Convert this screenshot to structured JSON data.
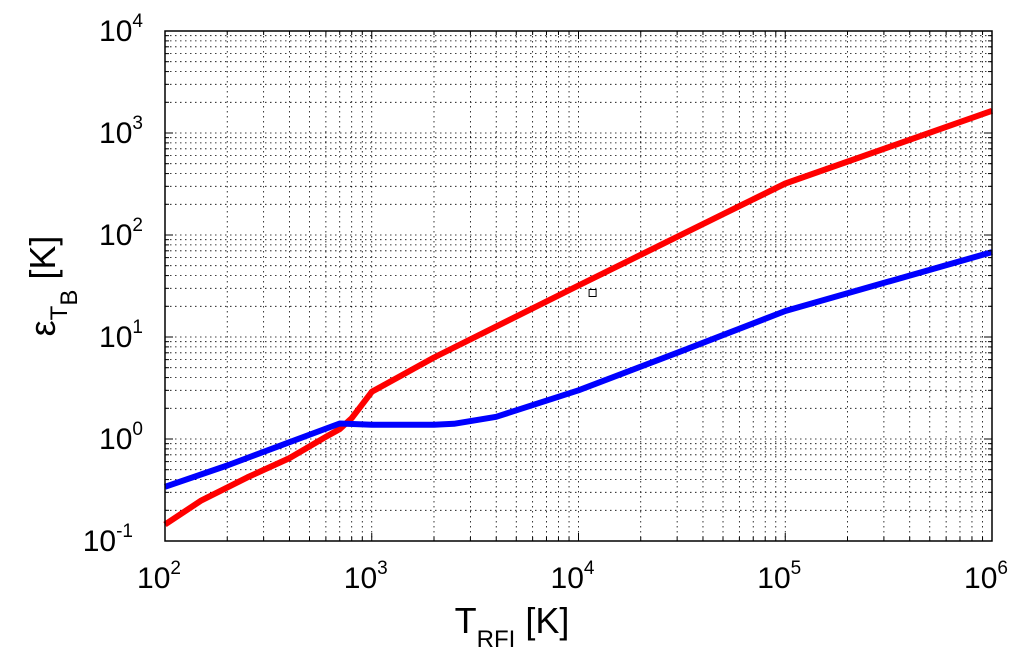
{
  "chart_data": {
    "type": "line",
    "title": "",
    "xlabel": {
      "main": "T",
      "sub": "RFI",
      "unit": " [K]"
    },
    "ylabel": {
      "main": "ε",
      "sub": "T",
      "subsub": "B",
      "unit": " [K]"
    },
    "x_scale": "log",
    "y_scale": "log",
    "xlim": [
      100,
      1000000
    ],
    "ylim": [
      0.1,
      10000
    ],
    "grid": true,
    "legend": "none",
    "x_ticks": [
      {
        "base": "10",
        "exp": "2",
        "value": 100
      },
      {
        "base": "10",
        "exp": "3",
        "value": 1000
      },
      {
        "base": "10",
        "exp": "4",
        "value": 10000
      },
      {
        "base": "10",
        "exp": "5",
        "value": 100000
      },
      {
        "base": "10",
        "exp": "6",
        "value": 1000000
      }
    ],
    "y_ticks": [
      {
        "base": "10",
        "exp": "-1",
        "value": 0.1
      },
      {
        "base": "10",
        "exp": "0",
        "value": 1
      },
      {
        "base": "10",
        "exp": "1",
        "value": 10
      },
      {
        "base": "10",
        "exp": "2",
        "value": 100
      },
      {
        "base": "10",
        "exp": "3",
        "value": 1000
      },
      {
        "base": "10",
        "exp": "4",
        "value": 10000
      }
    ],
    "series": [
      {
        "color": "#ff0000",
        "points": [
          [
            100,
            0.145
          ],
          [
            150,
            0.25
          ],
          [
            250,
            0.42
          ],
          [
            400,
            0.65
          ],
          [
            600,
            1.05
          ],
          [
            700,
            1.25
          ],
          [
            800,
            1.6
          ],
          [
            1000,
            2.9
          ],
          [
            2000,
            6.3
          ],
          [
            10000,
            32
          ],
          [
            50000,
            160
          ],
          [
            100000,
            320
          ],
          [
            1000000,
            1650
          ]
        ]
      },
      {
        "color": "#0000ff",
        "points": [
          [
            100,
            0.34
          ],
          [
            200,
            0.55
          ],
          [
            400,
            0.93
          ],
          [
            700,
            1.42
          ],
          [
            1000,
            1.38
          ],
          [
            2000,
            1.38
          ],
          [
            2500,
            1.41
          ],
          [
            4000,
            1.65
          ],
          [
            10000,
            3.0
          ],
          [
            30000,
            7.0
          ],
          [
            100000,
            18
          ],
          [
            1000000,
            68
          ]
        ]
      }
    ],
    "annotations": [
      {
        "type": "marker",
        "shape": "square",
        "x": 11700,
        "y": 27
      }
    ]
  }
}
